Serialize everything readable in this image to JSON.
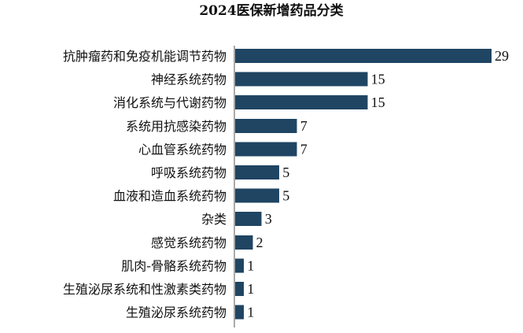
{
  "chart_data": {
    "type": "bar",
    "orientation": "horizontal",
    "title": "2024医保新增药品分类",
    "xlabel": "",
    "ylabel": "",
    "xlim": [
      0,
      29
    ],
    "grid": false,
    "legend": "none",
    "bar_color": "#1f4563",
    "categories": [
      "抗肿瘤药和免疫机能调节药物",
      "神经系统药物",
      "消化系统与代谢药物",
      "系统用抗感染药物",
      "心血管系统药物",
      "呼吸系统药物",
      "血液和造血系统药物",
      "杂类",
      "感觉系统药物",
      "肌肉-骨骼系统药物",
      "生殖泌尿系统和性激素类药物",
      "生殖泌尿系统药物"
    ],
    "values": [
      29,
      15,
      15,
      7,
      7,
      5,
      5,
      3,
      2,
      1,
      1,
      1
    ]
  }
}
